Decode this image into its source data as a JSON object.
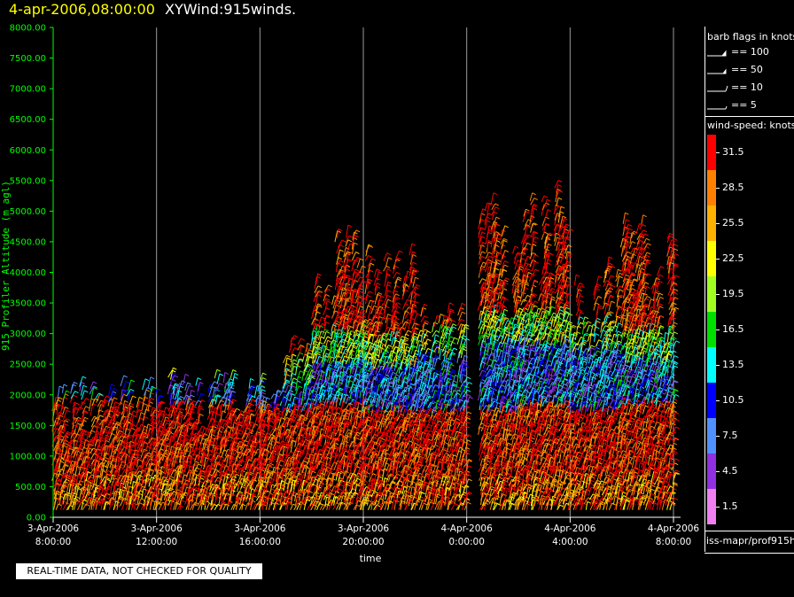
{
  "header": {
    "date": "4-apr-2006,08:00:00",
    "title": "XYWind:915winds."
  },
  "legend": {
    "barb_title": "barb flags in knots",
    "barbs": [
      {
        "label": "== 100",
        "icon": "pennant-barb-icon"
      },
      {
        "label": "== 50",
        "icon": "flag-barb-icon"
      },
      {
        "label": "== 10",
        "icon": "long-barb-icon"
      },
      {
        "label": "== 5",
        "icon": "short-barb-icon"
      }
    ],
    "speed_title": "wind-speed: knots",
    "speed_levels": [
      {
        "label": "31.5",
        "color": "#ff0000"
      },
      {
        "label": "28.5",
        "color": "#ff8000"
      },
      {
        "label": "25.5",
        "color": "#ffb000"
      },
      {
        "label": "22.5",
        "color": "#ffff00"
      },
      {
        "label": "19.5",
        "color": "#a0ff20"
      },
      {
        "label": "16.5",
        "color": "#00e000"
      },
      {
        "label": "13.5",
        "color": "#00ffff"
      },
      {
        "label": "10.5",
        "color": "#0000ff"
      },
      {
        "label": "7.5",
        "color": "#5090ff"
      },
      {
        "label": "4.5",
        "color": "#9030e0"
      },
      {
        "label": "1.5",
        "color": "#f080f0"
      }
    ],
    "source": "iss-mapr/prof915h"
  },
  "banner": {
    "text": "REAL-TIME DATA, NOT CHECKED FOR QUALITY"
  },
  "chart_data": {
    "type": "scatter",
    "title": "XYWind:915winds.",
    "xlabel": "time",
    "ylabel": "915 Profiler Altitude (m agl)",
    "ylim": [
      0,
      8000
    ],
    "yticks": [
      "0.00",
      "500.00",
      "1000.00",
      "1500.00",
      "2000.00",
      "2500.00",
      "3000.00",
      "3500.00",
      "4000.00",
      "4500.00",
      "5000.00",
      "5500.00",
      "6000.00",
      "6500.00",
      "7000.00",
      "7500.00",
      "8000.00"
    ],
    "xlim": [
      "2006-04-03 08:00",
      "2006-04-04 08:00"
    ],
    "xticks": [
      {
        "date": "3-Apr-2006",
        "time": "8:00:00"
      },
      {
        "date": "3-Apr-2006",
        "time": "12:00:00"
      },
      {
        "date": "3-Apr-2006",
        "time": "16:00:00"
      },
      {
        "date": "3-Apr-2006",
        "time": "20:00:00"
      },
      {
        "date": "4-Apr-2006",
        "time": "0:00:00"
      },
      {
        "date": "4-Apr-2006",
        "time": "4:00:00"
      },
      {
        "date": "4-Apr-2006",
        "time": "8:00:00"
      }
    ],
    "grid": "vertical lines at each x tick",
    "encoding": "wind barbs colored by wind speed (knots)",
    "profiles": [
      {
        "start_hour": 0.0,
        "end_hour": 4.0,
        "top_m": 2200,
        "low_speed_band_m": [
          1900,
          2300
        ]
      },
      {
        "start_hour": 4.0,
        "end_hour": 8.0,
        "top_m": 2300,
        "low_speed_band_m": [
          1800,
          2200
        ]
      },
      {
        "start_hour": 8.0,
        "end_hour": 10.0,
        "top_m": 2900,
        "low_speed_band_m": [
          1700,
          2100
        ]
      },
      {
        "start_hour": 10.0,
        "end_hour": 12.0,
        "top_m": 4700,
        "low_speed_band_m": [
          1800,
          2500
        ]
      },
      {
        "start_hour": 12.0,
        "end_hour": 14.0,
        "top_m": 4600,
        "low_speed_band_m": [
          1700,
          2400
        ]
      },
      {
        "start_hour": 14.0,
        "end_hour": 16.0,
        "top_m": 3600,
        "low_speed_band_m": [
          1700,
          2600
        ]
      },
      {
        "start_hour": 16.5,
        "end_hour": 18.0,
        "top_m": 5500,
        "low_speed_band_m": [
          1700,
          2800
        ]
      },
      {
        "start_hour": 18.0,
        "end_hour": 20.0,
        "top_m": 5500,
        "low_speed_band_m": [
          1800,
          2800
        ]
      },
      {
        "start_hour": 20.0,
        "end_hour": 22.0,
        "top_m": 4200,
        "low_speed_band_m": [
          1700,
          2700
        ]
      },
      {
        "start_hour": 22.0,
        "end_hour": 24.0,
        "top_m": 4900,
        "low_speed_band_m": [
          1800,
          2500
        ]
      }
    ]
  }
}
